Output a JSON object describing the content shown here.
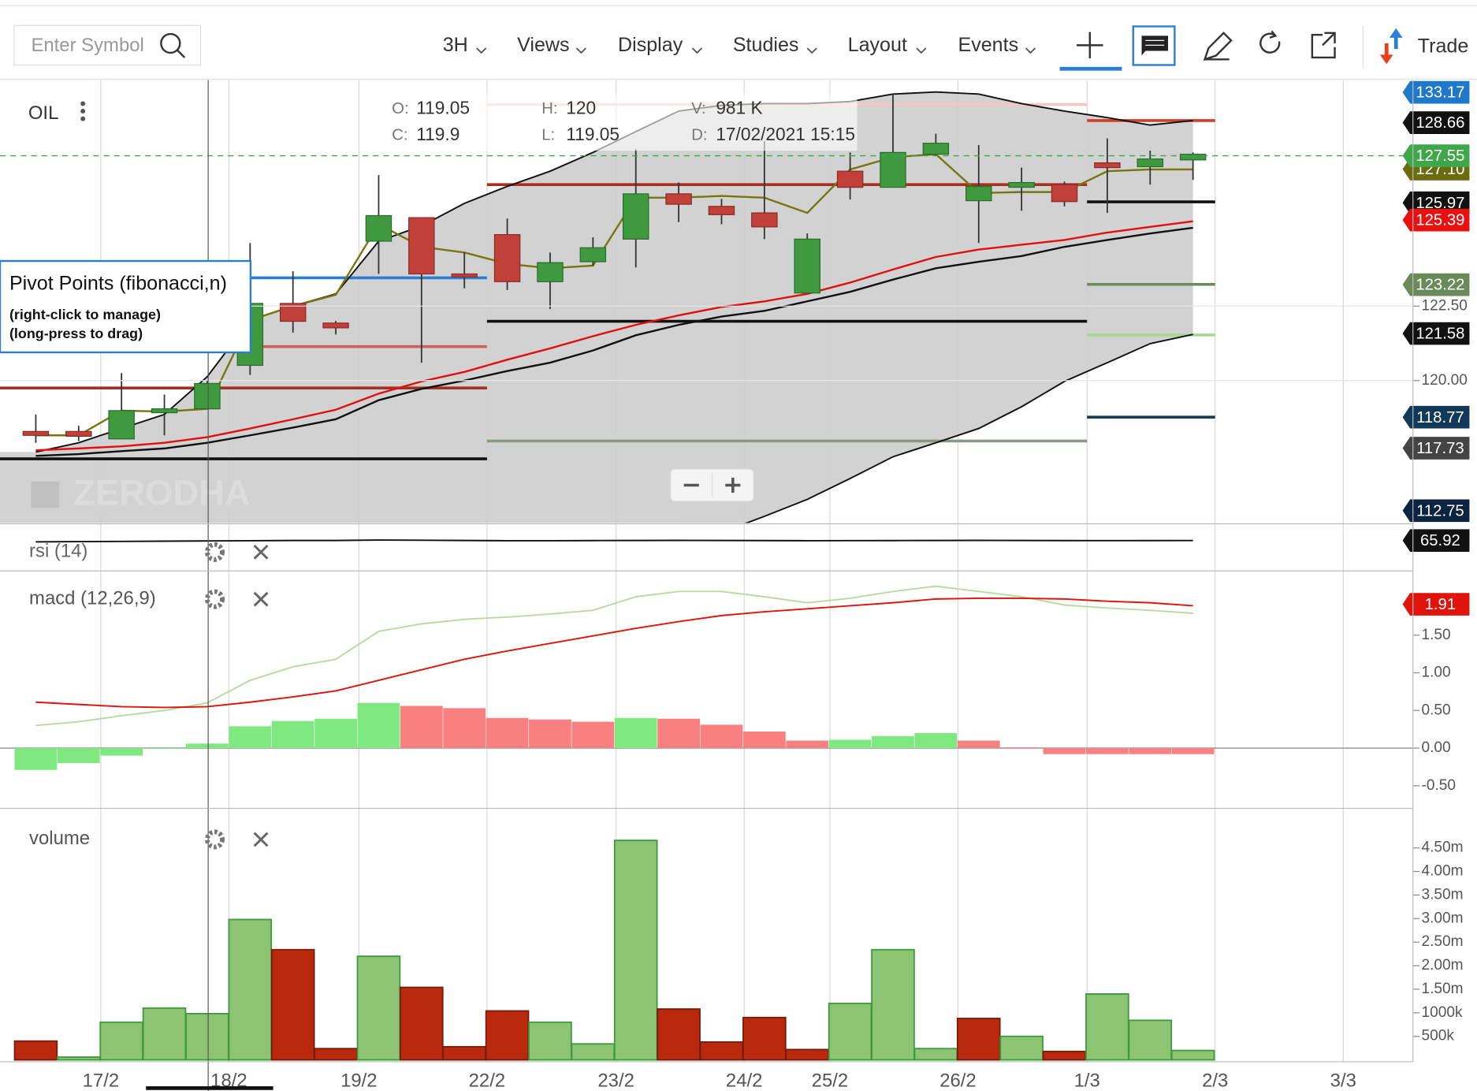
{
  "toolbar": {
    "search_placeholder": "Enter Symbol",
    "menus": [
      "3H",
      "Views",
      "Display",
      "Studies",
      "Layout",
      "Events"
    ],
    "trade": "Trade"
  },
  "chart": {
    "symbol": "OIL",
    "watermark": "ZERODHA",
    "info": [
      {
        "label": "O:",
        "value": 119.05
      },
      {
        "label": "H:",
        "value": 120
      },
      {
        "label": "V:",
        "value": "981 K"
      },
      {
        "label": "C:",
        "value": 119.9
      },
      {
        "label": "L:",
        "value": 119.05
      },
      {
        "label": "D:",
        "value": "17/02/2021 15:15"
      }
    ],
    "popup": {
      "title": "Pivot Points (fibonacci,n)",
      "lines": [
        "(right-click to manage)",
        "(long-press to drag)"
      ]
    },
    "dates": [
      "17/2",
      "18/2",
      "19/2",
      "22/2",
      "23/2",
      "24/2",
      "25/2",
      "26/2",
      "1/3",
      "2/3",
      "3/3"
    ],
    "price": {
      "ylim": [
        115.22,
        130.09
      ],
      "yticks": [
        {
          "value": 122.5,
          "label": "122.50"
        },
        {
          "value": 120,
          "label": "120.00"
        }
      ],
      "up_color": "#3f9a3f",
      "down_color": "#c2403a",
      "candles": [
        {
          "open": 118.29,
          "high": 118.86,
          "low": 117.91,
          "close": 118.16
        },
        {
          "open": 118.29,
          "high": 118.48,
          "low": 117.97,
          "close": 118.13
        },
        {
          "open": 118.04,
          "high": 120.25,
          "low": 118.04,
          "close": 118.99
        },
        {
          "open": 118.92,
          "high": 119.53,
          "low": 118.16,
          "close": 119.05
        },
        {
          "open": 119.05,
          "high": 120,
          "low": 119.05,
          "close": 119.9
        },
        {
          "open": 120.51,
          "high": 124.62,
          "low": 120.19,
          "close": 122.59
        },
        {
          "open": 122.59,
          "high": 123.67,
          "low": 121.61,
          "close": 121.99
        },
        {
          "open": 121.93,
          "high": 122.0,
          "low": 121.55,
          "close": 121.77
        },
        {
          "open": 124.68,
          "high": 126.9,
          "low": 123.58,
          "close": 125.54
        },
        {
          "open": 125.47,
          "high": 125.47,
          "low": 120.6,
          "close": 123.58
        },
        {
          "open": 123.58,
          "high": 124.3,
          "low": 123.1,
          "close": 123.48
        },
        {
          "open": 124.9,
          "high": 125.44,
          "low": 123.04,
          "close": 123.32
        },
        {
          "open": 123.32,
          "high": 124.3,
          "low": 122.4,
          "close": 123.96
        },
        {
          "open": 123.99,
          "high": 124.81,
          "low": 123.86,
          "close": 124.46
        },
        {
          "open": 124.75,
          "high": 127.78,
          "low": 123.8,
          "close": 126.27
        },
        {
          "open": 126.27,
          "high": 126.65,
          "low": 125.32,
          "close": 125.92
        },
        {
          "open": 125.85,
          "high": 126.1,
          "low": 125.25,
          "close": 125.57
        },
        {
          "open": 125.63,
          "high": 128.04,
          "low": 124.75,
          "close": 125.16
        },
        {
          "open": 122.94,
          "high": 124.94,
          "low": 122.94,
          "close": 124.75
        },
        {
          "open": 127.03,
          "high": 127.66,
          "low": 126.08,
          "close": 126.49
        },
        {
          "open": 126.49,
          "high": 129.62,
          "low": 126.49,
          "close": 127.66
        },
        {
          "open": 127.6,
          "high": 128.29,
          "low": 127.53,
          "close": 127.97
        },
        {
          "open": 126.04,
          "high": 127.91,
          "low": 124.62,
          "close": 126.52
        },
        {
          "open": 126.49,
          "high": 127.15,
          "low": 125.7,
          "close": 126.65
        },
        {
          "open": 126.58,
          "high": 126.68,
          "low": 125.85,
          "close": 126.01
        },
        {
          "open": 127.31,
          "high": 128.13,
          "low": 125.63,
          "close": 127.15
        },
        {
          "open": 127.18,
          "high": 127.72,
          "low": 126.58,
          "close": 127.44
        },
        {
          "open": 127.41,
          "high": 127.66,
          "low": 126.74,
          "close": 127.6
        }
      ],
      "bands": {
        "color": "#111111",
        "fill": "#cdcdcd",
        "upper": [
          117.6,
          117.91,
          118.39,
          118.86,
          120.13,
          122.03,
          122.5,
          122.91,
          124.68,
          125.19,
          125.95,
          126.52,
          127.03,
          127.66,
          128.36,
          129.05,
          129.24,
          129.3,
          129.3,
          129.37,
          129.62,
          129.69,
          129.62,
          129.3,
          129.05,
          128.83,
          128.58,
          128.73
        ],
        "lower": [
          null,
          null,
          null,
          null,
          null,
          null,
          null,
          null,
          null,
          null,
          null,
          null,
          null,
          null,
          null,
          null,
          114.9,
          115.44,
          116.01,
          116.71,
          117.44,
          117.91,
          118.39,
          119.12,
          119.97,
          120.6,
          121.24,
          121.55
        ]
      },
      "lines": [
        {
          "color": "#111111",
          "values": [
            117.47,
            117.53,
            117.63,
            117.72,
            117.91,
            118.16,
            118.42,
            118.7,
            119.34,
            119.72,
            120.0,
            120.32,
            120.6,
            121.01,
            121.52,
            121.87,
            122.15,
            122.34,
            122.66,
            122.98,
            123.39,
            123.77,
            123.99,
            124.18,
            124.49,
            124.72,
            124.94,
            125.13
          ]
        },
        {
          "color": "#e01010",
          "values": [
            117.66,
            117.72,
            117.79,
            117.91,
            118.1,
            118.39,
            118.7,
            119.02,
            119.56,
            119.97,
            120.29,
            120.7,
            121.08,
            121.49,
            121.87,
            122.19,
            122.47,
            122.66,
            122.91,
            123.29,
            123.73,
            124.15,
            124.4,
            124.56,
            124.72,
            124.97,
            125.16,
            125.35
          ]
        },
        {
          "color": "#767610",
          "values": [
            118.16,
            118.16,
            118.99,
            118.96,
            119.05,
            122.03,
            122.5,
            122.88,
            125.25,
            124.49,
            124.3,
            123.92,
            123.77,
            123.86,
            126.14,
            126.14,
            126.2,
            126.14,
            125.63,
            127.09,
            127.5,
            127.6,
            126.3,
            126.33,
            126.33,
            127.03,
            127.09,
            127.09
          ]
        }
      ],
      "pivots": [
        [
          {
            "value": 123.45,
            "color": "#2a7fd4"
          },
          {
            "value": 121.14,
            "color": "#d06060"
          },
          {
            "value": 119.75,
            "color": "#a03020"
          },
          {
            "value": 117.37,
            "color": "#111111"
          }
        ],
        [
          {
            "value": 129.27,
            "color": "#f4c8c0"
          },
          {
            "value": 126.58,
            "color": "#a83020"
          },
          {
            "value": 121.99,
            "color": "#111111"
          },
          {
            "value": 117.97,
            "color": "#8a9a80"
          }
        ],
        [
          {
            "value": 128.73,
            "color": "#d0402a"
          },
          {
            "value": 126.0,
            "color": "#111111"
          },
          {
            "value": 123.23,
            "color": "#6a8a5a"
          },
          {
            "value": 121.53,
            "color": "#a8d890"
          },
          {
            "value": 118.77,
            "color": "#143c5a"
          }
        ]
      ],
      "badges": [
        {
          "value": 133.17,
          "color": "#1f78c8"
        },
        {
          "value": 128.66,
          "color": "#111111"
        },
        {
          "value": {
            "value": 127.1,
            "label": "127.10"
          },
          "color": "#6b6b10"
        },
        {
          "value": 125.97,
          "color": "#111111"
        },
        {
          "value": 125.39,
          "color": "#e81010"
        },
        {
          "value": 123.22,
          "color": "#6a8a5a"
        },
        {
          "value": 121.58,
          "color": "#111111"
        },
        {
          "value": 118.77,
          "color": "#123a58"
        },
        {
          "value": 117.73,
          "color": "#444444"
        },
        {
          "value": 112.75,
          "color": "#0c2440"
        }
      ],
      "last": {
        "value": 127.55,
        "color": "#3fa74a"
      }
    },
    "rsi": {
      "label": "rsi (14)",
      "ylim": [
        0,
        100
      ],
      "color": "#111111",
      "values": [
        63,
        63.5,
        64,
        64.5,
        65,
        65.5,
        66,
        66,
        67,
        66.5,
        66,
        65.5,
        65.5,
        65.8,
        66,
        66.2,
        66,
        65.8,
        65.5,
        65.6,
        65.8,
        66,
        66.2,
        66,
        65.8,
        65.7,
        65.8,
        65.92
      ],
      "badge": {
        "value": 65.92,
        "color": "#111111"
      }
    },
    "macd": {
      "label": "macd (12,26,9)",
      "ylim": [
        -0.8,
        2.34
      ],
      "yticks": [
        {
          "value": 1.5,
          "label": "1.50"
        },
        {
          "value": 1,
          "label": "1.00"
        },
        {
          "value": 0.5,
          "label": "0.50"
        },
        {
          "value": 0,
          "label": "0.00"
        },
        {
          "value": -0.5,
          "label": "-0.50"
        }
      ],
      "histogram": {
        "values": [
          -0.29,
          -0.2,
          -0.1,
          -0.01,
          0.06,
          0.29,
          0.36,
          0.39,
          0.6,
          0.56,
          0.53,
          0.4,
          0.38,
          0.35,
          0.4,
          0.39,
          0.31,
          0.22,
          0.1,
          0.11,
          0.16,
          0.2,
          0.1,
          0.01,
          -0.08,
          -0.08,
          -0.08,
          -0.08
        ],
        "colors": [
          "#80e880",
          "#80e880",
          "#80e880",
          "#80e880",
          "#80e880",
          "#80e880",
          "#80e880",
          "#80e880",
          "#80e880",
          "#f88080",
          "#f88080",
          "#f88080",
          "#f88080",
          "#f88080",
          "#80e880",
          "#f88080",
          "#f88080",
          "#f88080",
          "#f88080",
          "#80e880",
          "#80e880",
          "#80e880",
          "#f88080",
          "#f88080",
          "#f88080",
          "#f88080",
          "#f88080",
          "#f88080"
        ]
      },
      "lines": [
        {
          "color": "#b8dca0",
          "values": [
            0.3,
            0.35,
            0.43,
            0.5,
            0.6,
            0.9,
            1.08,
            1.18,
            1.55,
            1.65,
            1.71,
            1.74,
            1.78,
            1.83,
            2.01,
            2.08,
            2.08,
            2.01,
            1.93,
            1.99,
            2.08,
            2.15,
            2.08,
            2.01,
            1.9,
            1.86,
            1.83,
            1.79
          ]
        },
        {
          "color": "#e0140c",
          "values": [
            0.61,
            0.58,
            0.55,
            0.54,
            0.55,
            0.61,
            0.68,
            0.76,
            0.9,
            1.04,
            1.18,
            1.29,
            1.39,
            1.49,
            1.59,
            1.68,
            1.76,
            1.81,
            1.85,
            1.89,
            1.93,
            1.98,
            1.99,
            1.99,
            1.98,
            1.95,
            1.93,
            1.89
          ]
        }
      ],
      "badge": {
        "value": 1.91,
        "color": "#e0140c"
      }
    },
    "volume": {
      "label": "volume",
      "ylim": [
        0,
        5300000
      ],
      "yticks": [
        {
          "value": 500000,
          "label": "500k"
        },
        {
          "value": 1000000,
          "label": "1000k"
        },
        {
          "value": 1500000,
          "label": "1.50m"
        },
        {
          "value": 2000000,
          "label": "2.00m"
        },
        {
          "value": 2500000,
          "label": "2.50m"
        },
        {
          "value": 3000000,
          "label": "3.00m"
        },
        {
          "value": 3500000,
          "label": "3.50m"
        },
        {
          "value": 4000000,
          "label": "4.00m"
        },
        {
          "value": 4500000,
          "label": "4.50m"
        }
      ],
      "values": [
        400000,
        60000,
        800000,
        1100000,
        981000,
        2980000,
        2340000,
        240000,
        2200000,
        1540000,
        280000,
        1040000,
        800000,
        340000,
        4660000,
        1080000,
        380000,
        900000,
        220000,
        1200000,
        2340000,
        240000,
        880000,
        500000,
        180000,
        1400000,
        840000,
        200000
      ],
      "colors": [
        "#b8290e",
        "#8cc474",
        "#8cc474",
        "#8cc474",
        "#8cc474",
        "#8cc474",
        "#b8290e",
        "#b8290e",
        "#8cc474",
        "#b8290e",
        "#b8290e",
        "#b8290e",
        "#8cc474",
        "#8cc474",
        "#8cc474",
        "#b8290e",
        "#b8290e",
        "#b8290e",
        "#b8290e",
        "#8cc474",
        "#8cc474",
        "#8cc474",
        "#b8290e",
        "#8cc474",
        "#b8290e",
        "#8cc474",
        "#8cc474",
        "#8cc474"
      ]
    }
  }
}
